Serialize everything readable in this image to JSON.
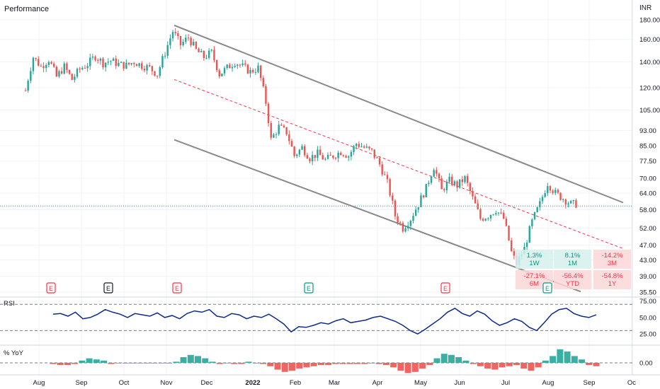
{
  "chart_data": {
    "type": "candlestick",
    "title": "Performance",
    "currency": "INR",
    "x_ticks": [
      "Aug",
      "Sep",
      "Oct",
      "Nov",
      "Dec",
      "2022",
      "Feb",
      "Mar",
      "Apr",
      "May",
      "Jun",
      "Jul",
      "Aug",
      "Sep",
      "Oc"
    ],
    "price_axis": {
      "scale": "log",
      "range": [
        35.5,
        186
      ],
      "ticks": [
        180.0,
        160.0,
        140.0,
        120.0,
        105.0,
        93.0,
        85.0,
        77.5,
        70.0,
        64.0,
        58.0,
        52.0,
        47.0,
        43.0,
        39.0,
        35.5
      ],
      "tick_labels": [
        "180.00",
        "160.00",
        "140.00",
        "120.00",
        "105.00",
        "93.00",
        "85.00",
        "77.50",
        "70.00",
        "64.00",
        "58.00",
        "52.00",
        "47.00",
        "43.00",
        "39.00",
        "35.50"
      ]
    },
    "close_line": 59.3,
    "colors": {
      "up": "#26a69a",
      "down": "#ef5350",
      "channel": "#8a8a8a",
      "midline": "#f23645",
      "rsi": "#0d2a8c"
    },
    "price_points": [
      {
        "t": 0,
        "p": 118
      },
      {
        "t": 3,
        "p": 144
      },
      {
        "t": 6,
        "p": 136
      },
      {
        "t": 9,
        "p": 142
      },
      {
        "t": 12,
        "p": 128
      },
      {
        "t": 15,
        "p": 136
      },
      {
        "t": 18,
        "p": 126
      },
      {
        "t": 21,
        "p": 134
      },
      {
        "t": 24,
        "p": 138
      },
      {
        "t": 27,
        "p": 145
      },
      {
        "t": 30,
        "p": 139
      },
      {
        "t": 33,
        "p": 141
      },
      {
        "t": 36,
        "p": 138
      },
      {
        "t": 39,
        "p": 137
      },
      {
        "t": 42,
        "p": 140
      },
      {
        "t": 45,
        "p": 137
      },
      {
        "t": 48,
        "p": 135
      },
      {
        "t": 51,
        "p": 130
      },
      {
        "t": 54,
        "p": 148
      },
      {
        "t": 57,
        "p": 168
      },
      {
        "t": 60,
        "p": 155
      },
      {
        "t": 63,
        "p": 162
      },
      {
        "t": 66,
        "p": 150
      },
      {
        "t": 69,
        "p": 144
      },
      {
        "t": 72,
        "p": 148
      },
      {
        "t": 75,
        "p": 130
      },
      {
        "t": 78,
        "p": 135
      },
      {
        "t": 81,
        "p": 140
      },
      {
        "t": 84,
        "p": 136
      },
      {
        "t": 87,
        "p": 132
      },
      {
        "t": 90,
        "p": 135
      },
      {
        "t": 93,
        "p": 110
      },
      {
        "t": 95,
        "p": 88
      },
      {
        "t": 98,
        "p": 95
      },
      {
        "t": 101,
        "p": 92
      },
      {
        "t": 104,
        "p": 80
      },
      {
        "t": 107,
        "p": 84
      },
      {
        "t": 110,
        "p": 79
      },
      {
        "t": 113,
        "p": 81
      },
      {
        "t": 116,
        "p": 78
      },
      {
        "t": 119,
        "p": 80
      },
      {
        "t": 122,
        "p": 82
      },
      {
        "t": 125,
        "p": 80
      },
      {
        "t": 128,
        "p": 86
      },
      {
        "t": 131,
        "p": 84
      },
      {
        "t": 134,
        "p": 82
      },
      {
        "t": 137,
        "p": 76
      },
      {
        "t": 140,
        "p": 68
      },
      {
        "t": 143,
        "p": 56
      },
      {
        "t": 146,
        "p": 52
      },
      {
        "t": 149,
        "p": 55
      },
      {
        "t": 152,
        "p": 60
      },
      {
        "t": 155,
        "p": 66
      },
      {
        "t": 158,
        "p": 75
      },
      {
        "t": 161,
        "p": 65
      },
      {
        "t": 164,
        "p": 69
      },
      {
        "t": 167,
        "p": 67
      },
      {
        "t": 170,
        "p": 70
      },
      {
        "t": 173,
        "p": 62
      },
      {
        "t": 176,
        "p": 55
      },
      {
        "t": 179,
        "p": 56
      },
      {
        "t": 182,
        "p": 58
      },
      {
        "t": 185,
        "p": 55
      },
      {
        "t": 188,
        "p": 45
      },
      {
        "t": 190,
        "p": 42
      },
      {
        "t": 193,
        "p": 46
      },
      {
        "t": 196,
        "p": 54
      },
      {
        "t": 199,
        "p": 60
      },
      {
        "t": 202,
        "p": 68
      },
      {
        "t": 205,
        "p": 64
      },
      {
        "t": 208,
        "p": 62
      },
      {
        "t": 211,
        "p": 60
      },
      {
        "t": 213,
        "p": 60
      }
    ],
    "rsi": {
      "label": "RSI",
      "ticks": [
        75.0,
        50.0,
        25.0
      ],
      "tick_labels": [
        "75.00",
        "50.00",
        "25.00"
      ],
      "levels": [
        70,
        30
      ],
      "values": [
        55,
        56,
        52,
        58,
        48,
        50,
        55,
        62,
        58,
        55,
        50,
        56,
        54,
        52,
        57,
        50,
        53,
        48,
        56,
        60,
        58,
        62,
        52,
        50,
        56,
        54,
        48,
        52,
        50,
        55,
        48,
        40,
        28,
        36,
        35,
        38,
        42,
        40,
        45,
        48,
        42,
        44,
        46,
        50,
        52,
        48,
        44,
        38,
        30,
        25,
        32,
        40,
        48,
        58,
        64,
        56,
        52,
        60,
        55,
        45,
        38,
        42,
        48,
        44,
        35,
        30,
        42,
        55,
        62,
        64,
        56,
        52,
        50,
        54
      ]
    },
    "yoy": {
      "label": "% YoY",
      "ticks": [
        0.0
      ],
      "tick_labels": [
        "0.00"
      ],
      "values": [
        -1,
        -2,
        -2,
        -1,
        2,
        4,
        3,
        2,
        -1,
        0,
        0,
        0,
        0,
        0,
        0,
        0,
        0,
        1,
        5,
        7,
        6,
        4,
        1,
        -1,
        0,
        -1,
        -1,
        1,
        0,
        -1,
        -3,
        -6,
        -8,
        -7,
        -5,
        -4,
        -3,
        -2,
        -2,
        -1,
        -1,
        -1,
        -1,
        -1,
        0,
        -1,
        -2,
        -4,
        -7,
        -9,
        -8,
        -5,
        -2,
        4,
        8,
        7,
        5,
        2,
        -1,
        -3,
        -5,
        -6,
        -4,
        -3,
        -2,
        -5,
        -7,
        -4,
        2,
        6,
        12,
        10,
        6,
        3,
        -2,
        -3
      ]
    },
    "earnings_markers": [
      {
        "label": "E",
        "t": 13,
        "kind": "red"
      },
      {
        "label": "E",
        "t": 36,
        "kind": "dark"
      },
      {
        "label": "E",
        "t": 60,
        "kind": "red"
      },
      {
        "label": "E",
        "t": 111,
        "kind": "green"
      },
      {
        "label": "E",
        "t": 160,
        "kind": "red"
      },
      {
        "label": "E",
        "t": 197,
        "kind": "green"
      }
    ],
    "performance": [
      {
        "value": "1.3%",
        "period": "1W",
        "sign": "up"
      },
      {
        "value": "8.1%",
        "period": "1M",
        "sign": "up"
      },
      {
        "value": "-14.2%",
        "period": "3M",
        "sign": "down"
      },
      {
        "value": "-27.1%",
        "period": "6M",
        "sign": "down"
      },
      {
        "value": "-56.4%",
        "period": "YTD",
        "sign": "down"
      },
      {
        "value": "-54.8%",
        "period": "1Y",
        "sign": "down"
      }
    ]
  }
}
